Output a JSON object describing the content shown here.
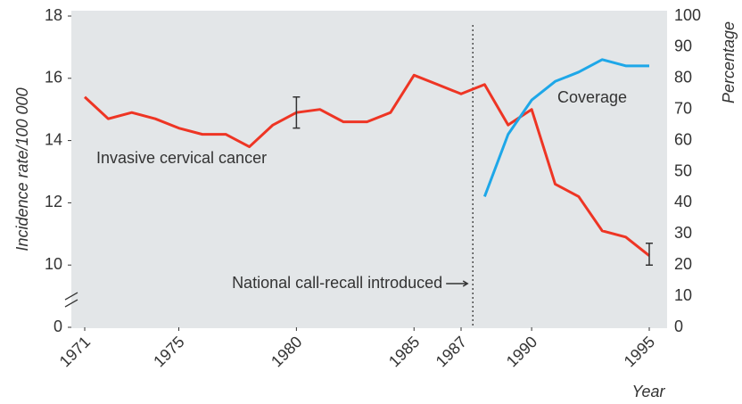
{
  "chart_data": {
    "type": "line",
    "x_label": "Year",
    "y_label": "Incidence rate/100 000",
    "y2_label": "Percentage",
    "x": [
      1971,
      1972,
      1973,
      1974,
      1975,
      1976,
      1977,
      1978,
      1979,
      1980,
      1981,
      1982,
      1983,
      1984,
      1985,
      1986,
      1987,
      1988,
      1989,
      1990,
      1991,
      1992,
      1993,
      1994,
      1995
    ],
    "series": [
      {
        "name": "Invasive cervical cancer",
        "color": "#ee3524",
        "values": [
          15.4,
          14.7,
          14.9,
          14.7,
          14.4,
          14.2,
          14.2,
          13.8,
          14.5,
          14.9,
          15.0,
          14.6,
          14.6,
          14.9,
          16.1,
          15.8,
          15.5,
          15.8,
          14.5,
          15.0,
          12.6,
          12.2,
          11.1,
          10.9,
          10.3
        ]
      },
      {
        "name": "Coverage",
        "color": "#1ea7e8",
        "axis": "y2",
        "values": [
          null,
          null,
          null,
          null,
          null,
          null,
          null,
          null,
          null,
          null,
          null,
          null,
          null,
          null,
          null,
          null,
          null,
          42,
          62,
          73,
          79,
          82,
          86,
          84,
          84
        ]
      }
    ],
    "error_bars": [
      {
        "x": 1980,
        "low": 14.4,
        "high": 15.4
      },
      {
        "x": 1995,
        "low": 10.0,
        "high": 10.7
      }
    ],
    "annotation": {
      "text": "National call-recall introduced",
      "x": 1987.5
    },
    "xlim": [
      1971,
      1995
    ],
    "xticks": [
      1971,
      1975,
      1980,
      1985,
      1987,
      1990,
      1995
    ],
    "ylim": [
      0,
      18
    ],
    "yticks": [
      0,
      10,
      12,
      14,
      16,
      18
    ],
    "y_break": true,
    "y2lim": [
      0,
      100
    ],
    "y2ticks": [
      0,
      10,
      20,
      30,
      40,
      50,
      60,
      70,
      80,
      90,
      100
    ]
  }
}
